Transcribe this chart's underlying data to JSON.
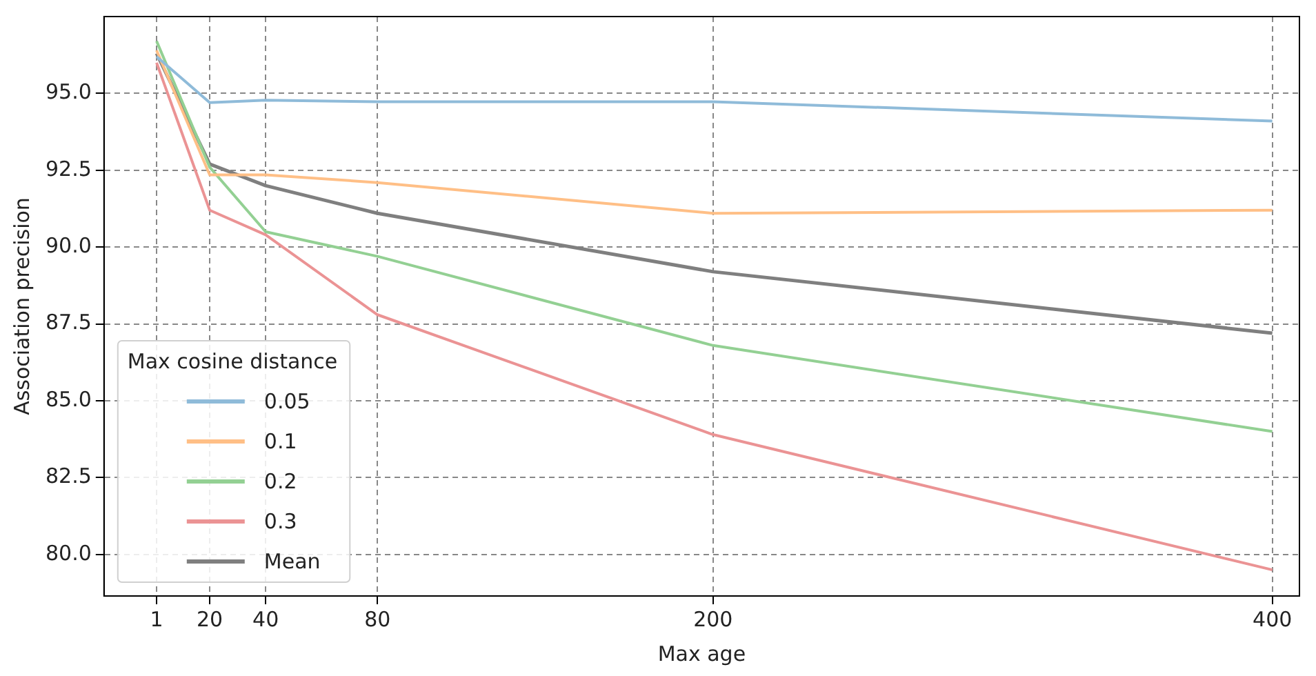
{
  "chart_data": {
    "type": "line",
    "xlabel": "Max age",
    "ylabel": "Association precision",
    "legend_title": "Max cosine distance",
    "x": [
      1,
      20,
      40,
      80,
      200,
      400
    ],
    "series": [
      {
        "name": "0.05",
        "color": "#8fbbd9",
        "values": [
          96.2,
          94.7,
          94.78,
          94.73,
          94.73,
          94.1
        ]
      },
      {
        "name": "0.1",
        "color": "#ffbf86",
        "values": [
          96.4,
          92.35,
          92.35,
          92.1,
          91.1,
          91.2
        ]
      },
      {
        "name": "0.2",
        "color": "#93d093",
        "values": [
          96.7,
          92.6,
          90.5,
          89.7,
          86.8,
          84.0
        ]
      },
      {
        "name": "0.3",
        "color": "#eb9394",
        "values": [
          96.0,
          91.2,
          90.4,
          87.8,
          83.9,
          79.5
        ]
      },
      {
        "name": "Mean",
        "color": "#7f7f7f",
        "values": [
          96.3,
          92.7,
          92.0,
          91.1,
          89.2,
          87.2
        ]
      }
    ],
    "xlim": [
      -17.8,
      409.7
    ],
    "ylim": [
      78.65,
      97.5
    ],
    "xticks": [
      1,
      20,
      40,
      80,
      200,
      400
    ],
    "yticks": [
      {
        "value": 80,
        "label": "80.0"
      },
      {
        "value": 82.5,
        "label": "82.5"
      },
      {
        "value": 85,
        "label": "85.0"
      },
      {
        "value": 87.5,
        "label": "87.5"
      },
      {
        "value": 90,
        "label": "90.0"
      },
      {
        "value": 92.5,
        "label": "92.5"
      },
      {
        "value": 95,
        "label": "95.0"
      }
    ],
    "grid": true,
    "legend": "bottom left",
    "marker": "none",
    "line_style": "solid"
  }
}
